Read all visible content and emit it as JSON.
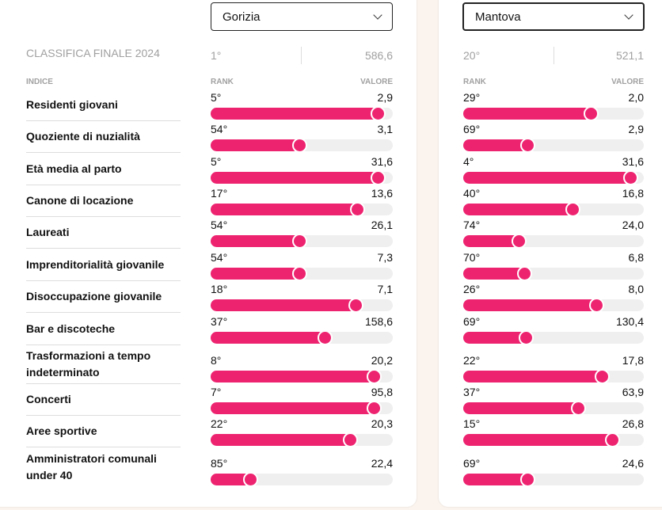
{
  "final_label": "CLASSIFICA FINALE 2024",
  "headers": {
    "indice": "INDICE",
    "rank": "RANK",
    "valore": "VALORE"
  },
  "accent": "#ee2370",
  "left": {
    "city": "Gorizia",
    "final_rank": "1°",
    "final_value": "586,6"
  },
  "right": {
    "city": "Mantova",
    "final_rank": "20°",
    "final_value": "521,1"
  },
  "indices": [
    {
      "label": "Residenti giovani",
      "left": {
        "rank": "5°",
        "value": "2,9",
        "fill": 0.92
      },
      "right": {
        "rank": "29°",
        "value": "2,0",
        "fill": 0.71
      }
    },
    {
      "label": "Quoziente di nuzialità",
      "left": {
        "rank": "54°",
        "value": "3,1",
        "fill": 0.49
      },
      "right": {
        "rank": "69°",
        "value": "2,9",
        "fill": 0.36
      }
    },
    {
      "label": "Età media al parto",
      "left": {
        "rank": "5°",
        "value": "31,6",
        "fill": 0.92
      },
      "right": {
        "rank": "4°",
        "value": "31,6",
        "fill": 0.93
      }
    },
    {
      "label": "Canone di locazione",
      "left": {
        "rank": "17°",
        "value": "13,6",
        "fill": 0.81
      },
      "right": {
        "rank": "40°",
        "value": "16,8",
        "fill": 0.61
      }
    },
    {
      "label": "Laureati",
      "left": {
        "rank": "54°",
        "value": "26,1",
        "fill": 0.49
      },
      "right": {
        "rank": "74°",
        "value": "24,0",
        "fill": 0.31
      }
    },
    {
      "label": "Imprenditorialità giovanile",
      "left": {
        "rank": "54°",
        "value": "7,3",
        "fill": 0.49
      },
      "right": {
        "rank": "70°",
        "value": "6,8",
        "fill": 0.34
      }
    },
    {
      "label": "Disoccupazione giovanile",
      "left": {
        "rank": "18°",
        "value": "7,1",
        "fill": 0.8
      },
      "right": {
        "rank": "26°",
        "value": "8,0",
        "fill": 0.74
      }
    },
    {
      "label": "Bar e discoteche",
      "left": {
        "rank": "37°",
        "value": "158,6",
        "fill": 0.63
      },
      "right": {
        "rank": "69°",
        "value": "130,4",
        "fill": 0.35
      }
    },
    {
      "label": "Trasformazioni a tempo indeterminato",
      "left": {
        "rank": "8°",
        "value": "20,2",
        "fill": 0.9
      },
      "right": {
        "rank": "22°",
        "value": "17,8",
        "fill": 0.77
      }
    },
    {
      "label": "Concerti",
      "left": {
        "rank": "7°",
        "value": "95,8",
        "fill": 0.9
      },
      "right": {
        "rank": "37°",
        "value": "63,9",
        "fill": 0.64
      }
    },
    {
      "label": "Aree sportive",
      "left": {
        "rank": "22°",
        "value": "20,3",
        "fill": 0.77
      },
      "right": {
        "rank": "15°",
        "value": "26,8",
        "fill": 0.83
      }
    },
    {
      "label": "Amministratori comunali under 40",
      "left": {
        "rank": "85°",
        "value": "22,4",
        "fill": 0.22
      },
      "right": {
        "rank": "69°",
        "value": "24,6",
        "fill": 0.36
      }
    }
  ]
}
